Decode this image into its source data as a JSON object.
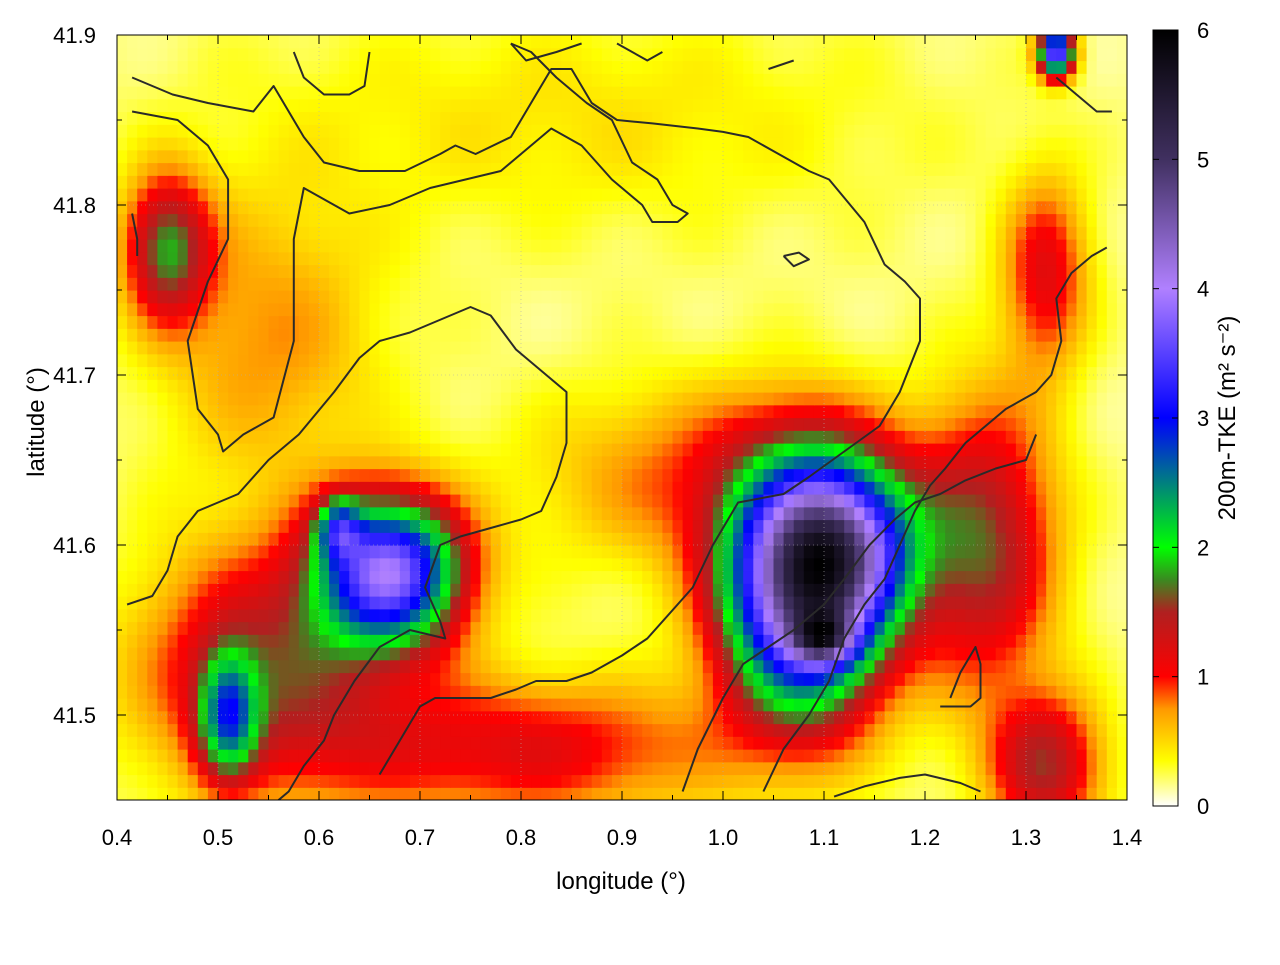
{
  "chart_data": {
    "type": "heatmap",
    "title": "",
    "xlabel": "longitude (°)",
    "ylabel": "latitude (°)",
    "xlim": [
      0.4,
      1.4
    ],
    "ylim": [
      41.45,
      41.9
    ],
    "xticks": [
      0.4,
      0.5,
      0.6,
      0.7,
      0.8,
      0.9,
      1.0,
      1.1,
      1.2,
      1.3,
      1.4
    ],
    "xtick_labels": [
      "0.4",
      "0.5",
      "0.6",
      "0.7",
      "0.8",
      "0.9",
      "1.0",
      "1.1",
      "1.2",
      "1.3",
      "1.4"
    ],
    "yticks": [
      41.5,
      41.6,
      41.7,
      41.8,
      41.9
    ],
    "ytick_labels": [
      "41.5",
      "41.6",
      "41.7",
      "41.8",
      "41.9"
    ],
    "grid": true,
    "colorbar": {
      "label": "200m-TKE (m² s⁻²)",
      "range": [
        0,
        6
      ],
      "ticks": [
        0,
        1,
        2,
        3,
        4,
        5,
        6
      ],
      "tick_labels": [
        "0",
        "1",
        "2",
        "3",
        "4",
        "5",
        "6"
      ],
      "colors": [
        {
          "v": 0.0,
          "c": "#ffffff"
        },
        {
          "v": 0.35,
          "c": "#ffff00"
        },
        {
          "v": 0.75,
          "c": "#ff9900"
        },
        {
          "v": 1.0,
          "c": "#ff0000"
        },
        {
          "v": 1.5,
          "c": "#b02020"
        },
        {
          "v": 1.75,
          "c": "#3a8a20"
        },
        {
          "v": 2.0,
          "c": "#00ff00"
        },
        {
          "v": 3.0,
          "c": "#0000ff"
        },
        {
          "v": 4.0,
          "c": "#b080ff"
        },
        {
          "v": 5.0,
          "c": "#403060"
        },
        {
          "v": 6.0,
          "c": "#000000"
        }
      ]
    },
    "field_blobs": [
      {
        "x": 1.08,
        "y": 41.575,
        "sx": 0.055,
        "sy": 0.05,
        "a": 4.5
      },
      {
        "x": 1.13,
        "y": 41.6,
        "sx": 0.05,
        "sy": 0.035,
        "a": 2.0
      },
      {
        "x": 1.1,
        "y": 41.545,
        "sx": 0.02,
        "sy": 0.01,
        "a": 1.8
      },
      {
        "x": 0.67,
        "y": 41.585,
        "sx": 0.05,
        "sy": 0.03,
        "a": 3.5
      },
      {
        "x": 0.62,
        "y": 41.61,
        "sx": 0.015,
        "sy": 0.012,
        "a": 1.5
      },
      {
        "x": 0.51,
        "y": 41.5,
        "sx": 0.02,
        "sy": 0.025,
        "a": 1.8
      },
      {
        "x": 0.45,
        "y": 41.775,
        "sx": 0.03,
        "sy": 0.03,
        "a": 1.5
      },
      {
        "x": 1.33,
        "y": 41.89,
        "sx": 0.012,
        "sy": 0.01,
        "a": 3.5
      },
      {
        "x": 1.26,
        "y": 41.6,
        "sx": 0.05,
        "sy": 0.06,
        "a": 1.4
      },
      {
        "x": 0.55,
        "y": 41.53,
        "sx": 0.09,
        "sy": 0.05,
        "a": 1.3
      },
      {
        "x": 0.8,
        "y": 41.48,
        "sx": 0.15,
        "sy": 0.03,
        "a": 1.0
      },
      {
        "x": 1.32,
        "y": 41.47,
        "sx": 0.04,
        "sy": 0.03,
        "a": 1.3
      },
      {
        "x": 0.98,
        "y": 41.64,
        "sx": 0.12,
        "sy": 0.04,
        "a": 0.7
      },
      {
        "x": 1.32,
        "y": 41.76,
        "sx": 0.03,
        "sy": 0.04,
        "a": 1.0
      },
      {
        "x": 0.85,
        "y": 41.85,
        "sx": 0.25,
        "sy": 0.05,
        "a": 0.3
      },
      {
        "x": 0.55,
        "y": 41.72,
        "sx": 0.08,
        "sy": 0.06,
        "a": 0.6
      }
    ],
    "contour_lines": [
      [
        [
          0.415,
          41.875
        ],
        [
          0.455,
          41.865
        ],
        [
          0.49,
          41.86
        ],
        [
          0.535,
          41.855
        ],
        [
          0.555,
          41.87
        ],
        [
          0.585,
          41.84
        ],
        [
          0.605,
          41.825
        ],
        [
          0.64,
          41.82
        ],
        [
          0.685,
          41.82
        ],
        [
          0.72,
          41.83
        ],
        [
          0.735,
          41.835
        ],
        [
          0.755,
          41.83
        ],
        [
          0.79,
          41.84
        ],
        [
          0.815,
          41.865
        ],
        [
          0.83,
          41.88
        ],
        [
          0.85,
          41.88
        ],
        [
          0.87,
          41.86
        ],
        [
          0.895,
          41.85
        ],
        [
          0.93,
          41.848
        ],
        [
          0.975,
          41.845
        ],
        [
          1.0,
          41.843
        ],
        [
          1.025,
          41.84
        ],
        [
          1.055,
          41.83
        ],
        [
          1.085,
          41.82
        ],
        [
          1.105,
          41.815
        ],
        [
          1.14,
          41.79
        ],
        [
          1.16,
          41.765
        ],
        [
          1.18,
          41.755
        ],
        [
          1.195,
          41.745
        ],
        [
          1.195,
          41.72
        ],
        [
          1.175,
          41.69
        ],
        [
          1.155,
          41.67
        ],
        [
          1.12,
          41.655
        ],
        [
          1.085,
          41.64
        ],
        [
          1.06,
          41.63
        ],
        [
          1.015,
          41.625
        ],
        [
          0.99,
          41.6
        ],
        [
          0.97,
          41.575
        ],
        [
          0.955,
          41.565
        ],
        [
          0.925,
          41.545
        ],
        [
          0.9,
          41.535
        ],
        [
          0.87,
          41.525
        ],
        [
          0.845,
          41.52
        ],
        [
          0.815,
          41.52
        ],
        [
          0.795,
          41.515
        ],
        [
          0.77,
          41.51
        ],
        [
          0.75,
          41.51
        ],
        [
          0.715,
          41.51
        ],
        [
          0.7,
          41.505
        ],
        [
          0.685,
          41.49
        ],
        [
          0.66,
          41.465
        ]
      ],
      [
        [
          0.415,
          41.855
        ],
        [
          0.46,
          41.85
        ],
        [
          0.49,
          41.835
        ],
        [
          0.51,
          41.815
        ],
        [
          0.51,
          41.78
        ],
        [
          0.49,
          41.755
        ],
        [
          0.47,
          41.72
        ],
        [
          0.48,
          41.68
        ],
        [
          0.5,
          41.665
        ],
        [
          0.505,
          41.655
        ],
        [
          0.525,
          41.665
        ],
        [
          0.555,
          41.675
        ],
        [
          0.575,
          41.72
        ],
        [
          0.575,
          41.78
        ],
        [
          0.585,
          41.81
        ],
        [
          0.63,
          41.795
        ],
        [
          0.67,
          41.8
        ],
        [
          0.71,
          41.81
        ],
        [
          0.745,
          41.815
        ],
        [
          0.78,
          41.82
        ],
        [
          0.8,
          41.83
        ],
        [
          0.83,
          41.845
        ],
        [
          0.86,
          41.835
        ],
        [
          0.89,
          41.815
        ],
        [
          0.92,
          41.8
        ],
        [
          0.93,
          41.79
        ],
        [
          0.955,
          41.79
        ],
        [
          0.965,
          41.795
        ],
        [
          0.95,
          41.8
        ],
        [
          0.935,
          41.815
        ],
        [
          0.91,
          41.825
        ],
        [
          0.89,
          41.85
        ],
        [
          0.865,
          41.86
        ],
        [
          0.835,
          41.875
        ],
        [
          0.81,
          41.89
        ],
        [
          0.79,
          41.895
        ]
      ],
      [
        [
          0.41,
          41.565
        ],
        [
          0.435,
          41.57
        ],
        [
          0.45,
          41.585
        ],
        [
          0.46,
          41.605
        ],
        [
          0.48,
          41.62
        ],
        [
          0.5,
          41.625
        ],
        [
          0.52,
          41.63
        ],
        [
          0.55,
          41.65
        ],
        [
          0.58,
          41.665
        ],
        [
          0.615,
          41.69
        ],
        [
          0.64,
          41.71
        ],
        [
          0.66,
          41.72
        ],
        [
          0.69,
          41.725
        ],
        [
          0.73,
          41.735
        ],
        [
          0.75,
          41.74
        ],
        [
          0.77,
          41.735
        ],
        [
          0.795,
          41.715
        ],
        [
          0.825,
          41.7
        ],
        [
          0.845,
          41.69
        ],
        [
          0.845,
          41.66
        ],
        [
          0.835,
          41.64
        ],
        [
          0.82,
          41.62
        ],
        [
          0.8,
          41.615
        ],
        [
          0.77,
          41.61
        ],
        [
          0.74,
          41.605
        ],
        [
          0.72,
          41.6
        ],
        [
          0.705,
          41.575
        ],
        [
          0.72,
          41.555
        ],
        [
          0.725,
          41.545
        ],
        [
          0.69,
          41.55
        ],
        [
          0.66,
          41.54
        ],
        [
          0.635,
          41.52
        ],
        [
          0.615,
          41.5
        ],
        [
          0.605,
          41.485
        ],
        [
          0.585,
          41.47
        ],
        [
          0.57,
          41.455
        ],
        [
          0.55,
          41.445
        ]
      ],
      [
        [
          1.04,
          41.455
        ],
        [
          1.06,
          41.48
        ],
        [
          1.085,
          41.5
        ],
        [
          1.105,
          41.52
        ],
        [
          1.12,
          41.545
        ],
        [
          1.14,
          41.565
        ],
        [
          1.16,
          41.58
        ],
        [
          1.175,
          41.6
        ],
        [
          1.19,
          41.62
        ],
        [
          1.205,
          41.635
        ],
        [
          1.22,
          41.645
        ],
        [
          1.24,
          41.66
        ],
        [
          1.26,
          41.67
        ],
        [
          1.28,
          41.68
        ],
        [
          1.31,
          41.69
        ],
        [
          1.325,
          41.7
        ],
        [
          1.335,
          41.72
        ],
        [
          1.33,
          41.745
        ],
        [
          1.345,
          41.76
        ],
        [
          1.365,
          41.77
        ],
        [
          1.38,
          41.775
        ]
      ],
      [
        [
          0.96,
          41.455
        ],
        [
          0.975,
          41.48
        ],
        [
          1.0,
          41.51
        ],
        [
          1.02,
          41.53
        ],
        [
          1.045,
          41.54
        ],
        [
          1.07,
          41.55
        ],
        [
          1.1,
          41.565
        ],
        [
          1.12,
          41.58
        ],
        [
          1.145,
          41.6
        ],
        [
          1.17,
          41.615
        ],
        [
          1.19,
          41.625
        ],
        [
          1.215,
          41.63
        ],
        [
          1.24,
          41.638
        ],
        [
          1.27,
          41.645
        ],
        [
          1.3,
          41.65
        ],
        [
          1.31,
          41.665
        ]
      ],
      [
        [
          1.11,
          41.452
        ],
        [
          1.14,
          41.458
        ],
        [
          1.175,
          41.463
        ],
        [
          1.2,
          41.465
        ],
        [
          1.235,
          41.46
        ],
        [
          1.255,
          41.455
        ]
      ],
      [
        [
          1.215,
          41.505
        ],
        [
          1.245,
          41.505
        ],
        [
          1.255,
          41.51
        ],
        [
          1.255,
          41.53
        ],
        [
          1.25,
          41.54
        ],
        [
          1.235,
          41.525
        ],
        [
          1.225,
          41.51
        ]
      ],
      [
        [
          1.33,
          41.875
        ],
        [
          1.35,
          41.865
        ],
        [
          1.37,
          41.855
        ],
        [
          1.385,
          41.855
        ]
      ],
      [
        [
          0.575,
          41.89
        ],
        [
          0.585,
          41.875
        ],
        [
          0.605,
          41.865
        ],
        [
          0.63,
          41.865
        ],
        [
          0.645,
          41.87
        ],
        [
          0.65,
          41.89
        ]
      ],
      [
        [
          0.79,
          41.895
        ],
        [
          0.805,
          41.885
        ],
        [
          0.835,
          41.89
        ],
        [
          0.86,
          41.895
        ]
      ],
      [
        [
          0.895,
          41.895
        ],
        [
          0.925,
          41.885
        ],
        [
          0.94,
          41.89
        ]
      ],
      [
        [
          1.045,
          41.88
        ],
        [
          1.07,
          41.885
        ]
      ],
      [
        [
          1.06,
          41.77
        ],
        [
          1.075,
          41.772
        ],
        [
          1.085,
          41.768
        ],
        [
          1.07,
          41.764
        ],
        [
          1.06,
          41.77
        ]
      ],
      [
        [
          0.415,
          41.795
        ],
        [
          0.42,
          41.78
        ],
        [
          0.42,
          41.77
        ]
      ]
    ]
  }
}
